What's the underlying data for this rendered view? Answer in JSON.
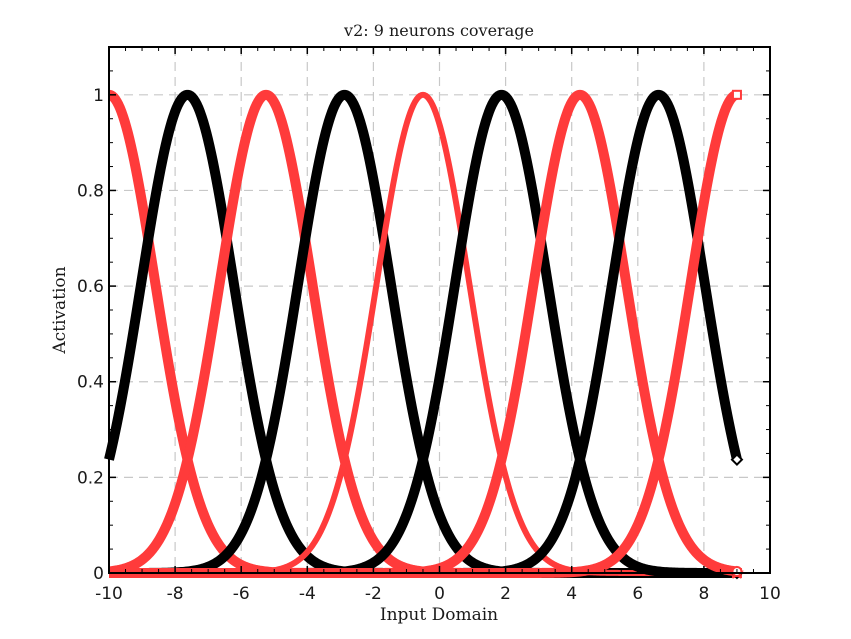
{
  "chart_data": {
    "type": "line",
    "title": "v2: 9 neurons coverage",
    "xlabel": "Input Domain",
    "ylabel": "Activation",
    "xlim": [
      -10,
      10
    ],
    "ylim": [
      0,
      1.1
    ],
    "x_ticks": [
      -10,
      -8,
      -6,
      -4,
      -2,
      0,
      2,
      4,
      6,
      8,
      10
    ],
    "x_tick_labels": [
      "-10",
      "-8",
      "-6",
      "-4",
      "-2",
      "0",
      "2",
      "4",
      "6",
      "8",
      "10"
    ],
    "y_ticks": [
      0,
      0.2,
      0.4,
      0.6,
      0.8,
      1
    ],
    "y_tick_labels": [
      "0",
      "0.2",
      "0.4",
      "0.6",
      "0.8",
      "1"
    ],
    "grid": true,
    "domain": [
      -10,
      9
    ],
    "series": [
      {
        "center": -10.0,
        "width": 1.98,
        "color": "#ff3b3b",
        "line_width": 10,
        "end_marker": "square"
      },
      {
        "center": -7.625,
        "width": 1.98,
        "color": "#000000",
        "line_width": 10,
        "end_marker": "diamond"
      },
      {
        "center": -5.25,
        "width": 1.98,
        "color": "#ff3b3b",
        "line_width": 10,
        "end_marker": "star"
      },
      {
        "center": -2.875,
        "width": 1.98,
        "color": "#000000",
        "line_width": 10,
        "end_marker": "none"
      },
      {
        "center": -0.5,
        "width": 1.98,
        "color": "#ff3b3b",
        "line_width": 6,
        "end_marker": "none"
      },
      {
        "center": 1.875,
        "width": 1.98,
        "color": "#000000",
        "line_width": 10,
        "end_marker": "none"
      },
      {
        "center": 4.25,
        "width": 1.98,
        "color": "#ff3b3b",
        "line_width": 10,
        "end_marker": "circle"
      },
      {
        "center": 6.625,
        "width": 1.98,
        "color": "#000000",
        "line_width": 10,
        "end_marker": "diamond"
      },
      {
        "center": 9.0,
        "width": 1.98,
        "color": "#ff3b3b",
        "line_width": 10,
        "end_marker": "square"
      }
    ]
  }
}
